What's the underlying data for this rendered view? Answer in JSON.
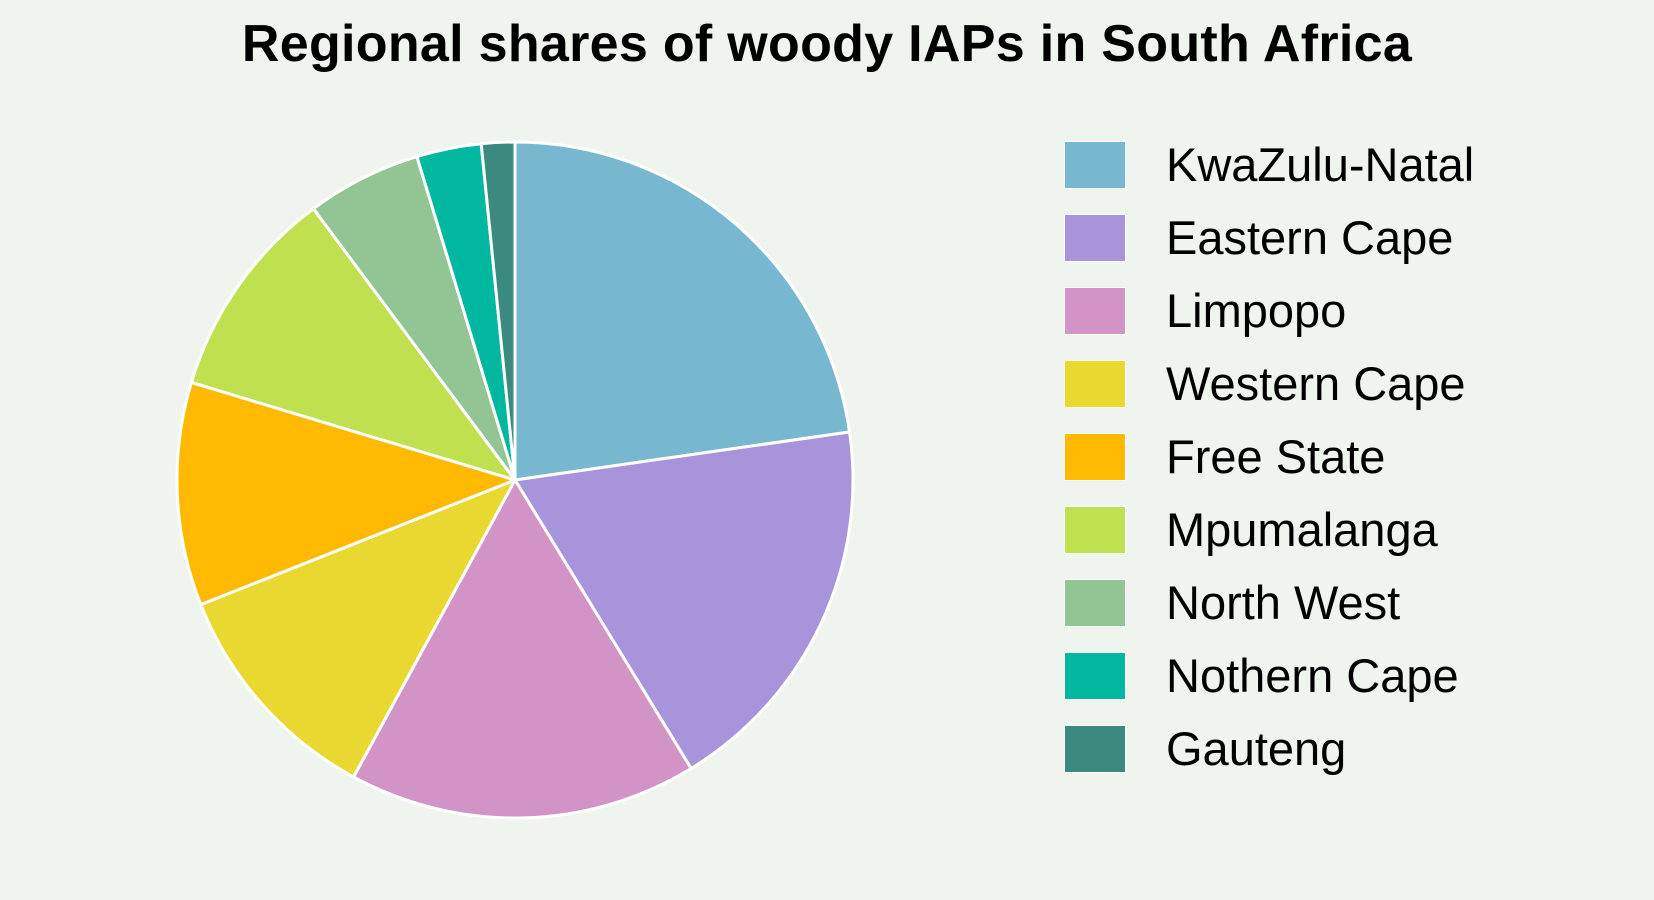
{
  "chart_data": {
    "type": "pie",
    "title": "Regional shares of woody IAPs in South Africa",
    "start_angle": "12 o'clock",
    "direction": "clockwise",
    "slices": [
      {
        "label": "KwaZulu-Natal",
        "value": 22.8,
        "color": "#77b7cf"
      },
      {
        "label": "Eastern Cape",
        "value": 18.6,
        "color": "#a894da"
      },
      {
        "label": "Limpopo",
        "value": 16.7,
        "color": "#d293c6"
      },
      {
        "label": "Western Cape",
        "value": 11.1,
        "color": "#e8d82f"
      },
      {
        "label": "Free State",
        "value": 10.7,
        "color": "#ffb900"
      },
      {
        "label": "Mpumalanga",
        "value": 10.2,
        "color": "#bfe04f"
      },
      {
        "label": "North West",
        "value": 5.5,
        "color": "#93c493"
      },
      {
        "label": "Nothern Cape",
        "value": 3.1,
        "color": "#00b8a0"
      },
      {
        "label": "Gauteng",
        "value": 1.6,
        "color": "#3a8a80"
      }
    ],
    "legend_position": "right"
  }
}
